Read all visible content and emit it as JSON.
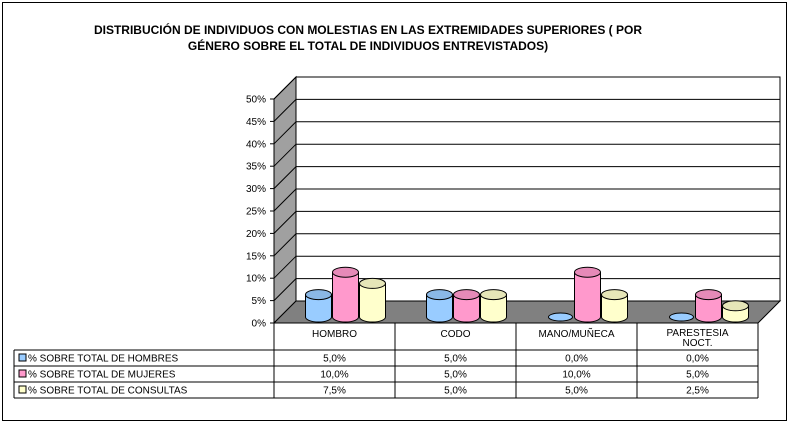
{
  "chart_data": {
    "type": "bar",
    "title_line1": "DISTRIBUCIÓN DE INDIVIDUOS CON MOLESTIAS EN LAS  EXTREMIDADES SUPERIORES ( POR",
    "title_line2": "GÉNERO SOBRE EL TOTAL DE INDIVIDUOS ENTREVISTADOS)",
    "categories": [
      "HOMBRO",
      "CODO",
      "MANO/MUÑECA",
      "PARESTESIA NOCT."
    ],
    "category_labels": [
      [
        "HOMBRO"
      ],
      [
        "CODO"
      ],
      [
        "MANO/MUÑECA"
      ],
      [
        "PARESTESIA",
        "NOCT."
      ]
    ],
    "series": [
      {
        "name": "% SOBRE TOTAL DE HOMBRES",
        "values": [
          5.0,
          5.0,
          0.0,
          0.0
        ],
        "labels": [
          "5,0%",
          "5,0%",
          "0,0%",
          "0,0%"
        ],
        "color": "#99CCFF"
      },
      {
        "name": "% SOBRE TOTAL DE MUJERES",
        "values": [
          10.0,
          5.0,
          10.0,
          5.0
        ],
        "labels": [
          "10,0%",
          "5,0%",
          "10,0%",
          "5,0%"
        ],
        "color": "#FF99CC"
      },
      {
        "name": "% SOBRE TOTAL DE CONSULTAS",
        "values": [
          7.5,
          5.0,
          5.0,
          2.5
        ],
        "labels": [
          "7,5%",
          "5,0%",
          "5,0%",
          "2,5%"
        ],
        "color": "#FFFFCC"
      }
    ],
    "yticks": [
      "0%",
      "5%",
      "10%",
      "15%",
      "20%",
      "25%",
      "30%",
      "35%",
      "40%",
      "45%",
      "50%"
    ],
    "ylim": [
      0,
      50
    ],
    "grid": true,
    "data_table": true,
    "colors": {
      "wall": "#C0C0C0",
      "floor": "#808080",
      "side": "#A0A0A0",
      "frame": "#000000"
    }
  }
}
